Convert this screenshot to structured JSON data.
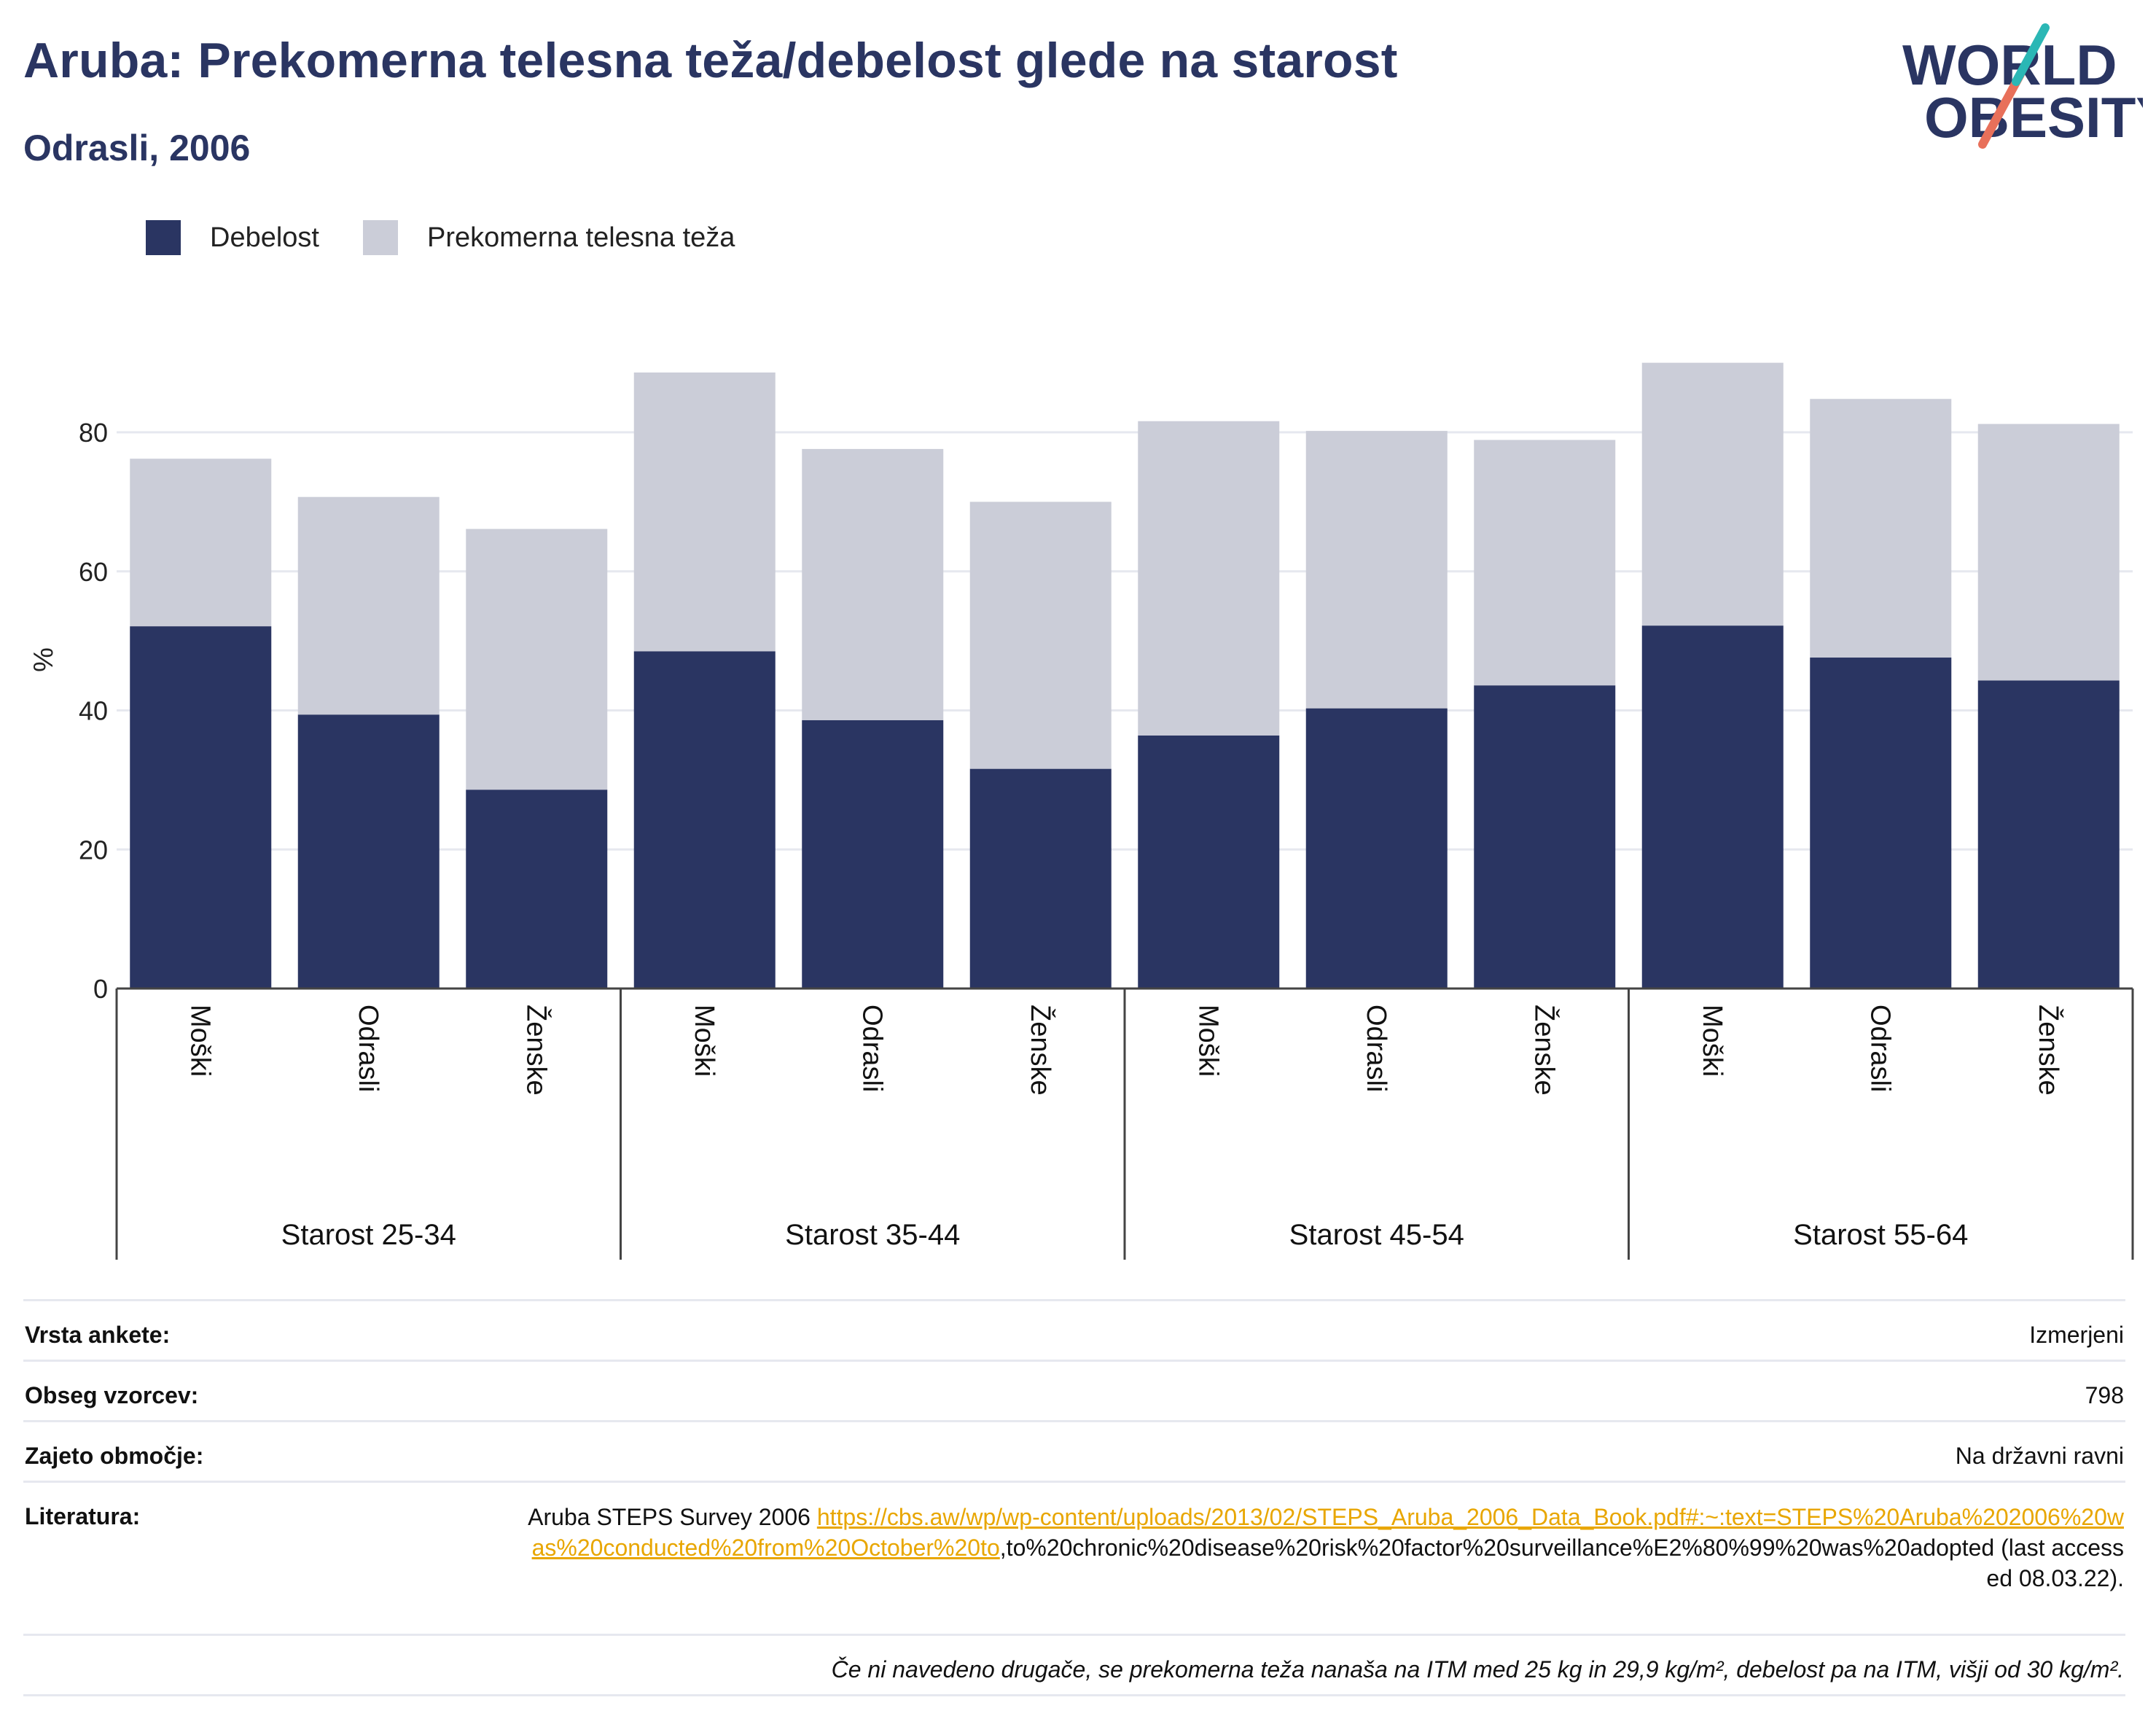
{
  "header": {
    "title": "Aruba: Prekomerna telesna teža/debelost glede na starost",
    "subtitle": "Odrasli, 2006"
  },
  "logo": {
    "line1": "WORLD",
    "line2": "OBESITY"
  },
  "legend": [
    {
      "label": "Debelost",
      "color": "#2a3562"
    },
    {
      "label": "Prekomerna telesna teža",
      "color": "#cbcdd8"
    }
  ],
  "chart_data": {
    "type": "bar",
    "stacked": true,
    "ylabel": "%",
    "ylim": [
      0,
      95
    ],
    "yticks": [
      0,
      20,
      40,
      60,
      80
    ],
    "grid": true,
    "legend_position": "top-left",
    "groups": [
      "Starost 25-34",
      "Starost 35-44",
      "Starost 45-54",
      "Starost 55-64"
    ],
    "categories": [
      "Moški",
      "Odrasli",
      "Ženske",
      "Moški",
      "Odrasli",
      "Ženske",
      "Moški",
      "Odrasli",
      "Ženske",
      "Moški",
      "Odrasli",
      "Ženske"
    ],
    "series": [
      {
        "name": "Debelost",
        "color": "#2a3562",
        "values": [
          52.1,
          39.4,
          28.6,
          48.5,
          38.6,
          31.6,
          36.4,
          40.3,
          43.6,
          52.2,
          47.6,
          44.3
        ]
      },
      {
        "name": "Prekomerna telesna teža",
        "color": "#cbcdd8",
        "values": [
          24.1,
          31.3,
          37.5,
          40.1,
          39.0,
          38.4,
          45.2,
          39.9,
          35.3,
          37.8,
          37.2,
          36.9
        ]
      }
    ]
  },
  "meta": {
    "survey_type_label": "Vrsta ankete:",
    "survey_type_value": "Izmerjeni",
    "sample_label": "Obseg vzorcev:",
    "sample_value": "798",
    "area_label": "Zajeto območje:",
    "area_value": "Na državni ravni",
    "ref_label": "Literatura:",
    "ref_text_before": "Aruba STEPS Survey 2006 ",
    "ref_link": "https://cbs.aw/wp/wp-content/uploads/2013/02/STEPS_Aruba_2006_Data_Book.pdf#:~:text=STEPS%20Aruba%202006%20was%20conducted%20from%20October%20to",
    "ref_text_after": ",to%20chronic%20disease%20risk%20factor%20surveillance%E2%80%99%20was%20adopted (last accessed 08.03.22).",
    "footnote": "Če ni navedeno drugače, se prekomerna teža nanaša na ITM med 25 kg in 29,9 kg/m², debelost pa na ITM, višji od 30 kg/m²."
  }
}
